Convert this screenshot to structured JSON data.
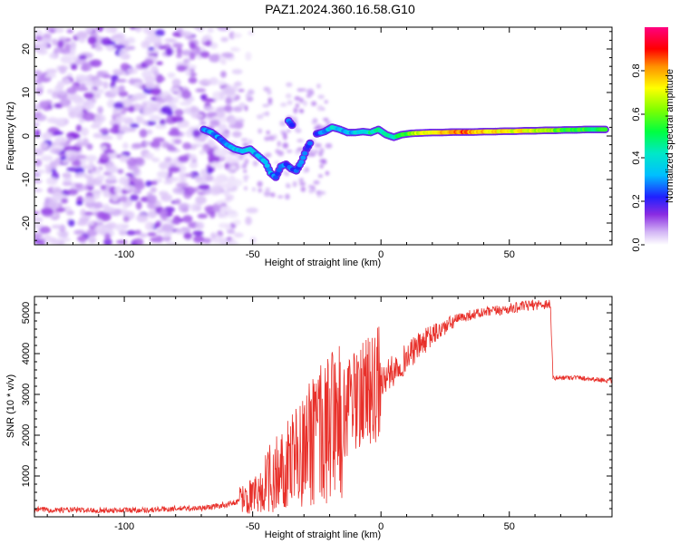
{
  "title": "PAZ1.2024.360.16.58.G10",
  "colors": {
    "snr_line": "#e8302a",
    "axis": "#000000",
    "background": "#ffffff"
  },
  "chart_data": [
    {
      "type": "heatmap",
      "xlabel": "Height of straight line (km)",
      "ylabel": "Frequency (Hz)",
      "xlim": [
        -135,
        90
      ],
      "ylim": [
        -25,
        25
      ],
      "x_ticks": [
        -100,
        -50,
        0,
        50
      ],
      "y_ticks": [
        -20,
        -10,
        0,
        10,
        20
      ],
      "x_tick_labels": [
        "-100",
        "-50",
        "0",
        "50"
      ],
      "y_tick_labels": [
        "-20",
        "-10",
        "0",
        "10",
        "20"
      ],
      "colorbar": {
        "label": "Normalized spectral amplitude",
        "range": [
          0,
          1
        ],
        "ticks": [
          0.0,
          0.2,
          0.4,
          0.6,
          0.8
        ],
        "tick_labels": [
          "0.0",
          "0.2",
          "0.4",
          "0.6",
          "0.8"
        ],
        "stops": [
          {
            "v": 0.0,
            "color": "#ffffff"
          },
          {
            "v": 0.06,
            "color": "#d2b4f5"
          },
          {
            "v": 0.14,
            "color": "#8a2be2"
          },
          {
            "v": 0.22,
            "color": "#2020ff"
          },
          {
            "v": 0.32,
            "color": "#00bfff"
          },
          {
            "v": 0.42,
            "color": "#00e8c8"
          },
          {
            "v": 0.52,
            "color": "#00ff40"
          },
          {
            "v": 0.62,
            "color": "#80ff00"
          },
          {
            "v": 0.72,
            "color": "#ffff00"
          },
          {
            "v": 0.82,
            "color": "#ff9000"
          },
          {
            "v": 0.9,
            "color": "#ff0000"
          },
          {
            "v": 1.0,
            "color": "#ff0080"
          }
        ]
      },
      "noise_region_x": [
        -135,
        -55
      ],
      "signal_track": [
        {
          "x": -69,
          "y": 1.5,
          "a": 0.28
        },
        {
          "x": -66,
          "y": 0.8,
          "a": 0.35
        },
        {
          "x": -63,
          "y": -0.5,
          "a": 0.25
        },
        {
          "x": -60,
          "y": -2.0,
          "a": 0.28
        },
        {
          "x": -57,
          "y": -3.0,
          "a": 0.32
        },
        {
          "x": -54,
          "y": -3.5,
          "a": 0.3
        },
        {
          "x": -51,
          "y": -3.0,
          "a": 0.34
        },
        {
          "x": -48,
          "y": -4.5,
          "a": 0.3
        },
        {
          "x": -45,
          "y": -6.0,
          "a": 0.33
        },
        {
          "x": -43,
          "y": -8.5,
          "a": 0.3
        },
        {
          "x": -41,
          "y": -9.5,
          "a": 0.26
        },
        {
          "x": -39,
          "y": -7.0,
          "a": 0.28
        },
        {
          "x": -37,
          "y": -6.5,
          "a": 0.25
        },
        {
          "x": -35,
          "y": -7.5,
          "a": 0.24
        },
        {
          "x": -33,
          "y": -8.0,
          "a": 0.26
        },
        {
          "x": -31,
          "y": -6.0,
          "a": 0.25
        },
        {
          "x": -29,
          "y": -3.0,
          "a": 0.22
        },
        {
          "x": -27,
          "y": -1.0,
          "a": 0.24
        },
        {
          "x": -36,
          "y": 3.5,
          "a": 0.3
        },
        {
          "x": -34,
          "y": 2.0,
          "a": 0.25
        },
        {
          "x": -25,
          "y": 0.5,
          "a": 0.28
        },
        {
          "x": -22,
          "y": 1.0,
          "a": 0.3
        },
        {
          "x": -19,
          "y": 2.0,
          "a": 0.38
        },
        {
          "x": -16,
          "y": 1.5,
          "a": 0.35
        },
        {
          "x": -13,
          "y": 0.8,
          "a": 0.33
        },
        {
          "x": -10,
          "y": 0.8,
          "a": 0.36
        },
        {
          "x": -7,
          "y": 1.0,
          "a": 0.38
        },
        {
          "x": -4,
          "y": 0.8,
          "a": 0.45
        },
        {
          "x": -1,
          "y": 1.5,
          "a": 0.42
        },
        {
          "x": 2,
          "y": 0.3,
          "a": 0.4
        },
        {
          "x": 5,
          "y": -0.3,
          "a": 0.45
        },
        {
          "x": 8,
          "y": 0.3,
          "a": 0.5
        },
        {
          "x": 12,
          "y": 0.6,
          "a": 0.62
        },
        {
          "x": 16,
          "y": 0.7,
          "a": 0.7
        },
        {
          "x": 20,
          "y": 0.8,
          "a": 0.72
        },
        {
          "x": 24,
          "y": 0.8,
          "a": 0.78
        },
        {
          "x": 28,
          "y": 0.9,
          "a": 0.82
        },
        {
          "x": 32,
          "y": 0.9,
          "a": 0.85
        },
        {
          "x": 36,
          "y": 0.9,
          "a": 0.8
        },
        {
          "x": 40,
          "y": 1.0,
          "a": 0.76
        },
        {
          "x": 44,
          "y": 1.0,
          "a": 0.72
        },
        {
          "x": 48,
          "y": 1.1,
          "a": 0.75
        },
        {
          "x": 52,
          "y": 1.1,
          "a": 0.7
        },
        {
          "x": 56,
          "y": 1.2,
          "a": 0.72
        },
        {
          "x": 60,
          "y": 1.2,
          "a": 0.68
        },
        {
          "x": 64,
          "y": 1.3,
          "a": 0.65
        },
        {
          "x": 68,
          "y": 1.3,
          "a": 0.6
        },
        {
          "x": 72,
          "y": 1.4,
          "a": 0.55
        },
        {
          "x": 76,
          "y": 1.4,
          "a": 0.55
        },
        {
          "x": 80,
          "y": 1.5,
          "a": 0.52
        },
        {
          "x": 84,
          "y": 1.5,
          "a": 0.5
        },
        {
          "x": 88,
          "y": 1.5,
          "a": 0.5
        }
      ]
    },
    {
      "type": "line",
      "xlabel": "Height of straight line (km)",
      "ylabel": "SNR (10 * v/v)",
      "xlim": [
        -135,
        90
      ],
      "ylim": [
        0,
        5400
      ],
      "x_ticks": [
        -100,
        -50,
        0,
        50
      ],
      "y_ticks": [
        1000,
        2000,
        3000,
        4000,
        5000
      ],
      "x_tick_labels": [
        "-100",
        "-50",
        "0",
        "50"
      ],
      "y_tick_labels": [
        "1000",
        "2000",
        "3000",
        "4000",
        "5000"
      ],
      "series_envelope": [
        {
          "x": -135,
          "y": 180
        },
        {
          "x": -110,
          "y": 160
        },
        {
          "x": -90,
          "y": 170
        },
        {
          "x": -80,
          "y": 200
        },
        {
          "x": -70,
          "y": 210
        },
        {
          "x": -60,
          "y": 300
        },
        {
          "x": -52,
          "y": 450
        },
        {
          "x": -48,
          "y": 600
        },
        {
          "x": -44,
          "y": 900
        },
        {
          "x": -40,
          "y": 1100
        },
        {
          "x": -36,
          "y": 1300
        },
        {
          "x": -32,
          "y": 1600
        },
        {
          "x": -28,
          "y": 1800
        },
        {
          "x": -24,
          "y": 2000
        },
        {
          "x": -20,
          "y": 2200
        },
        {
          "x": -16,
          "y": 2400
        },
        {
          "x": -12,
          "y": 2700
        },
        {
          "x": -8,
          "y": 2900
        },
        {
          "x": -4,
          "y": 3100
        },
        {
          "x": 0,
          "y": 3300
        },
        {
          "x": 5,
          "y": 3600
        },
        {
          "x": 10,
          "y": 3900
        },
        {
          "x": 15,
          "y": 4200
        },
        {
          "x": 20,
          "y": 4450
        },
        {
          "x": 25,
          "y": 4650
        },
        {
          "x": 30,
          "y": 4850
        },
        {
          "x": 35,
          "y": 4950
        },
        {
          "x": 40,
          "y": 5000
        },
        {
          "x": 45,
          "y": 5050
        },
        {
          "x": 50,
          "y": 5100
        },
        {
          "x": 55,
          "y": 5150
        },
        {
          "x": 60,
          "y": 5200
        },
        {
          "x": 66,
          "y": 5220
        },
        {
          "x": 67,
          "y": 3400
        },
        {
          "x": 75,
          "y": 3420
        },
        {
          "x": 82,
          "y": 3380
        },
        {
          "x": 90,
          "y": 3330
        }
      ]
    }
  ]
}
